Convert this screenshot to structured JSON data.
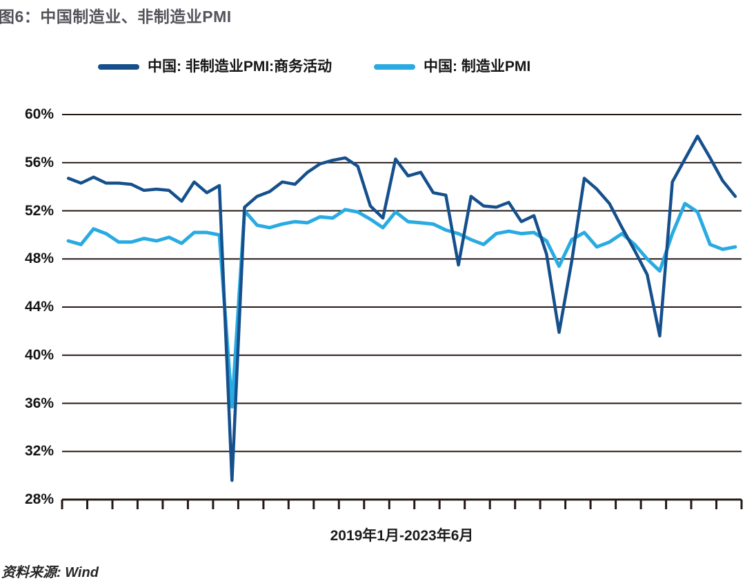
{
  "title": "图6：中国制造业、非制造业PMI",
  "legend": {
    "items": [
      {
        "id": "non_manufacturing",
        "label": "中国: 非制造业PMI:商务活动",
        "color": "#15508d"
      },
      {
        "id": "manufacturing",
        "label": "中国: 制造业PMI",
        "color": "#29abe2"
      }
    ]
  },
  "x_axis_label": "2019年1月-2023年6月",
  "source_note": "资料来源: Wind",
  "chart_data": {
    "type": "line",
    "title": "图6：中国制造业、非制造业PMI",
    "x_label": "2019年1月-2023年6月",
    "x_start": "2019-01",
    "x_end": "2023-06",
    "frequency": "monthly",
    "ylim": [
      28,
      60
    ],
    "y_ticks": [
      "60%",
      "56%",
      "52%",
      "48%",
      "44%",
      "40%",
      "36%",
      "32%",
      "28%"
    ],
    "x_tick_count": 28,
    "grid": true,
    "grid_color": "#231815",
    "legend_position": "top",
    "background": "#ffffff",
    "series": [
      {
        "id": "non_manufacturing",
        "name": "中国: 非制造业PMI:商务活动",
        "color": "#15508d",
        "values": [
          54.7,
          54.3,
          54.8,
          54.3,
          54.3,
          54.2,
          53.7,
          53.8,
          53.7,
          52.8,
          54.4,
          53.5,
          54.1,
          29.6,
          52.3,
          53.2,
          53.6,
          54.4,
          54.2,
          55.2,
          55.9,
          56.2,
          56.4,
          55.7,
          52.4,
          51.4,
          56.3,
          54.9,
          55.2,
          53.5,
          53.3,
          47.5,
          53.2,
          52.4,
          52.3,
          52.7,
          51.1,
          51.6,
          48.4,
          41.9,
          47.8,
          54.7,
          53.8,
          52.6,
          50.6,
          48.7,
          46.7,
          41.6,
          54.4,
          56.3,
          58.2,
          56.4,
          54.5,
          53.2
        ]
      },
      {
        "id": "manufacturing",
        "name": "中国: 制造业PMI",
        "color": "#29abe2",
        "values": [
          49.5,
          49.2,
          50.5,
          50.1,
          49.4,
          49.4,
          49.7,
          49.5,
          49.8,
          49.3,
          50.2,
          50.2,
          50.0,
          35.7,
          52.0,
          50.8,
          50.6,
          50.9,
          51.1,
          51.0,
          51.5,
          51.4,
          52.1,
          51.9,
          51.3,
          50.6,
          51.9,
          51.1,
          51.0,
          50.9,
          50.4,
          50.1,
          49.6,
          49.2,
          50.1,
          50.3,
          50.1,
          50.2,
          49.5,
          47.4,
          49.6,
          50.2,
          49.0,
          49.4,
          50.1,
          49.2,
          48.0,
          47.0,
          50.1,
          52.6,
          51.9,
          49.2,
          48.8,
          49.0
        ]
      }
    ]
  }
}
